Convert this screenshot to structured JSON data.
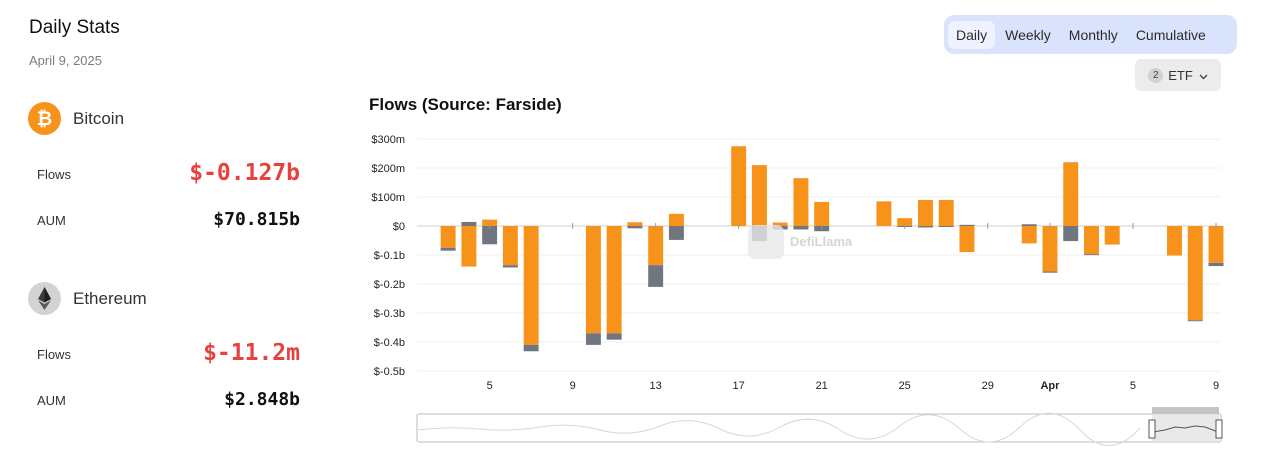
{
  "stats": {
    "title": "Daily Stats",
    "date": "April 9, 2025",
    "assets": [
      {
        "name": "Bitcoin",
        "icon": "bitcoin-icon",
        "icon_color": "#f7931a",
        "flows_label": "Flows",
        "flows_value": "$-0.127b",
        "aum_label": "AUM",
        "aum_value": "$70.815b"
      },
      {
        "name": "Ethereum",
        "icon": "ethereum-icon",
        "icon_color": "#8c8c8c",
        "flows_label": "Flows",
        "flows_value": "$-11.2m",
        "aum_label": "AUM",
        "aum_value": "$2.848b"
      }
    ],
    "negative_color": "#e8413c"
  },
  "controls": {
    "tabs": [
      "Daily",
      "Weekly",
      "Monthly",
      "Cumulative"
    ],
    "active_tab": "Daily",
    "etf_count": "2",
    "etf_label": "ETF",
    "tab_bg_color": "#d9e3fb"
  },
  "watermark": "DefiLlama",
  "chart_data": {
    "type": "bar",
    "title": "Flows (Source: Farside)",
    "stacked": true,
    "colors": {
      "Bitcoin": "#f7931a",
      "Ethereum": "#70767f"
    },
    "ylim": [
      -0.5,
      0.3
    ],
    "yticks": [
      0.3,
      0.2,
      0.1,
      0,
      -0.1,
      -0.2,
      -0.3,
      -0.4,
      -0.5
    ],
    "ytick_labels": [
      "$300m",
      "$200m",
      "$100m",
      "$0",
      "$-0.1b",
      "$-0.2b",
      "$-0.3b",
      "$-0.4b",
      "$-0.5b"
    ],
    "xtick_labels": [
      {
        "date": "2025-03-05",
        "label": "5",
        "bold": false
      },
      {
        "date": "2025-03-09",
        "label": "9",
        "bold": false
      },
      {
        "date": "2025-03-13",
        "label": "13",
        "bold": false
      },
      {
        "date": "2025-03-17",
        "label": "17",
        "bold": false
      },
      {
        "date": "2025-03-21",
        "label": "21",
        "bold": false
      },
      {
        "date": "2025-03-25",
        "label": "25",
        "bold": false
      },
      {
        "date": "2025-03-29",
        "label": "29",
        "bold": false
      },
      {
        "date": "2025-04-01",
        "label": "Apr",
        "bold": true
      },
      {
        "date": "2025-04-05",
        "label": "5",
        "bold": false
      },
      {
        "date": "2025-04-09",
        "label": "9",
        "bold": false
      }
    ],
    "x_range": [
      "2025-03-02",
      "2025-04-09"
    ],
    "series": [
      {
        "name": "Bitcoin",
        "values": [
          [
            "2025-03-03",
            -0.075
          ],
          [
            "2025-03-04",
            -0.14
          ],
          [
            "2025-03-05",
            0.022
          ],
          [
            "2025-03-06",
            -0.135
          ],
          [
            "2025-03-07",
            -0.41
          ],
          [
            "2025-03-10",
            -0.37
          ],
          [
            "2025-03-11",
            -0.37
          ],
          [
            "2025-03-12",
            0.013
          ],
          [
            "2025-03-13",
            -0.135
          ],
          [
            "2025-03-14",
            0.042
          ],
          [
            "2025-03-17",
            0.275
          ],
          [
            "2025-03-18",
            0.21
          ],
          [
            "2025-03-19",
            0.012
          ],
          [
            "2025-03-20",
            0.165
          ],
          [
            "2025-03-21",
            0.083
          ],
          [
            "2025-03-24",
            0.085
          ],
          [
            "2025-03-25",
            0.027
          ],
          [
            "2025-03-26",
            0.09
          ],
          [
            "2025-03-27",
            0.09
          ],
          [
            "2025-03-28",
            -0.09
          ],
          [
            "2025-03-31",
            -0.06
          ],
          [
            "2025-04-01",
            -0.157
          ],
          [
            "2025-04-02",
            0.22
          ],
          [
            "2025-04-03",
            -0.097
          ],
          [
            "2025-04-04",
            -0.064
          ],
          [
            "2025-04-07",
            -0.102
          ],
          [
            "2025-04-08",
            -0.325
          ],
          [
            "2025-04-09",
            -0.127
          ]
        ]
      },
      {
        "name": "Ethereum",
        "values": [
          [
            "2025-03-03",
            -0.01
          ],
          [
            "2025-03-04",
            0.014
          ],
          [
            "2025-03-05",
            -0.063
          ],
          [
            "2025-03-06",
            -0.008
          ],
          [
            "2025-03-07",
            -0.022
          ],
          [
            "2025-03-10",
            -0.04
          ],
          [
            "2025-03-11",
            -0.022
          ],
          [
            "2025-03-12",
            -0.008
          ],
          [
            "2025-03-13",
            -0.075
          ],
          [
            "2025-03-14",
            -0.048
          ],
          [
            "2025-03-17",
            0.0
          ],
          [
            "2025-03-18",
            -0.052
          ],
          [
            "2025-03-19",
            -0.012
          ],
          [
            "2025-03-20",
            -0.012
          ],
          [
            "2025-03-21",
            -0.018
          ],
          [
            "2025-03-24",
            0.0
          ],
          [
            "2025-03-25",
            -0.003
          ],
          [
            "2025-03-26",
            -0.005
          ],
          [
            "2025-03-27",
            -0.003
          ],
          [
            "2025-03-28",
            0.004
          ],
          [
            "2025-03-31",
            0.006
          ],
          [
            "2025-04-01",
            -0.004
          ],
          [
            "2025-04-02",
            -0.052
          ],
          [
            "2025-04-03",
            -0.003
          ],
          [
            "2025-04-04",
            0.0
          ],
          [
            "2025-04-07",
            0.0
          ],
          [
            "2025-04-08",
            -0.003
          ],
          [
            "2025-04-09",
            -0.0112
          ]
        ]
      }
    ]
  }
}
